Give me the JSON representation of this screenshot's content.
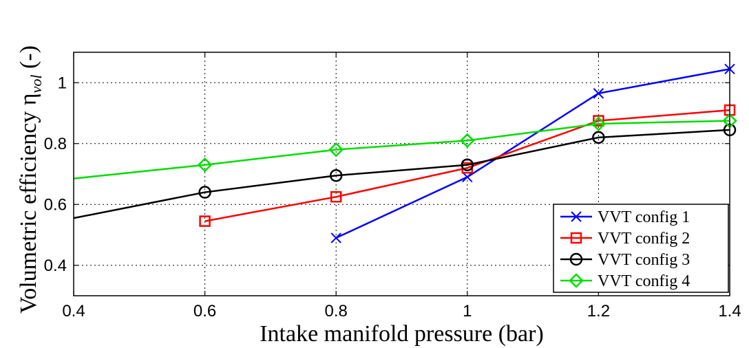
{
  "chart_data": {
    "type": "line",
    "xlabel": "Intake manifold pressure (bar)",
    "ylabel": "Volumetric efficiency η",
    "ylabel_subscript": "vol",
    "ylabel_unit": "(-)",
    "xlim": [
      0.4,
      1.4
    ],
    "ylim": [
      0.3,
      1.1
    ],
    "xticks": [
      "0.4",
      "0.6",
      "0.8",
      "1",
      "1.2",
      "1.4"
    ],
    "yticks": [
      "0.4",
      "0.6",
      "0.8",
      "1"
    ],
    "grid": true,
    "legend_position": "bottom-right",
    "series": [
      {
        "name": "VVT config 1",
        "color": "#0000ff",
        "marker": "x",
        "x": [
          0.8,
          1.0,
          1.2,
          1.4
        ],
        "y": [
          0.49,
          0.69,
          0.965,
          1.045
        ]
      },
      {
        "name": "VVT config 2",
        "color": "#ff0000",
        "marker": "square",
        "x": [
          0.6,
          0.8,
          1.0,
          1.2,
          1.4
        ],
        "y": [
          0.545,
          0.625,
          0.72,
          0.875,
          0.91
        ]
      },
      {
        "name": "VVT config 3",
        "color": "#000000",
        "marker": "circle",
        "x": [
          0.4,
          0.6,
          0.8,
          1.0,
          1.2,
          1.4
        ],
        "y": [
          0.555,
          0.64,
          0.695,
          0.73,
          0.82,
          0.845
        ]
      },
      {
        "name": "VVT config 4",
        "color": "#00dd00",
        "marker": "diamond",
        "x": [
          0.4,
          0.6,
          0.8,
          1.0,
          1.2,
          1.4
        ],
        "y": [
          0.685,
          0.73,
          0.78,
          0.81,
          0.865,
          0.875
        ]
      }
    ]
  }
}
